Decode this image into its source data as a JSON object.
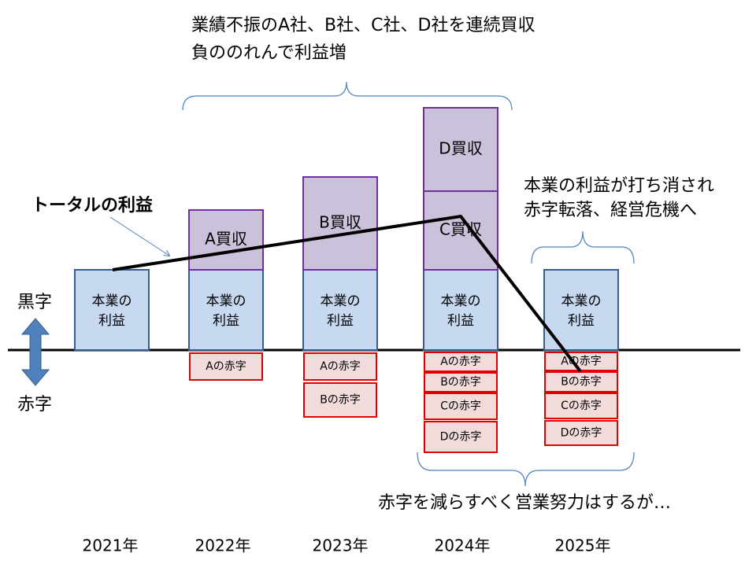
{
  "header": {
    "lines": [
      "業績不振のA社、B社、C社、D社を連続買収",
      "負ののれんで利益増"
    ]
  },
  "total_label": "トータルの利益",
  "right_note": {
    "lines": [
      "本業の利益が打ち消され",
      "赤字転落、経営危機へ"
    ]
  },
  "bottom_note": "赤字を減らすべく営業努力はするが…",
  "side": {
    "profit": "黒字",
    "loss": "赤字"
  },
  "columns": [
    {
      "year": "2021年",
      "core": [
        "本業の",
        "利益"
      ],
      "acquisitions": [],
      "losses": []
    },
    {
      "year": "2022年",
      "core": [
        "本業の",
        "利益"
      ],
      "acquisitions": [
        "A買収"
      ],
      "losses": [
        "Aの赤字"
      ]
    },
    {
      "year": "2023年",
      "core": [
        "本業の",
        "利益"
      ],
      "acquisitions": [
        "B買収"
      ],
      "losses": [
        "Aの赤字",
        "Bの赤字"
      ]
    },
    {
      "year": "2024年",
      "core": [
        "本業の",
        "利益"
      ],
      "acquisitions": [
        "C買収",
        "D買収"
      ],
      "losses": [
        "Aの赤字",
        "Bの赤字",
        "Cの赤字",
        "Dの赤字"
      ]
    },
    {
      "year": "2025年",
      "core": [
        "本業の",
        "利益"
      ],
      "acquisitions": [],
      "losses": [
        "Aの赤字",
        "Bの赤字",
        "Cの赤字",
        "Dの赤字"
      ]
    }
  ]
}
